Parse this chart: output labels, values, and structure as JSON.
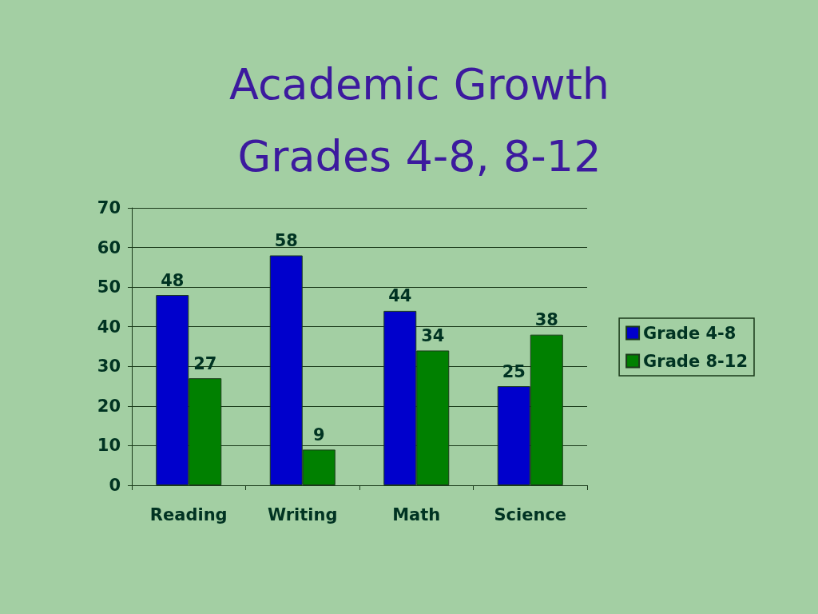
{
  "chart_data": {
    "type": "bar",
    "title": "Academic Growth\nGrades 4-8, 8-12",
    "categories": [
      "Reading",
      "Writing",
      "Math",
      "Science"
    ],
    "series": [
      {
        "name": "Grade 4-8",
        "color": "#0000cc",
        "values": [
          48,
          58,
          44,
          25
        ]
      },
      {
        "name": "Grade 8-12",
        "color": "#008000",
        "values": [
          27,
          9,
          34,
          38
        ]
      }
    ],
    "ylim": [
      0,
      70
    ],
    "yticks": [
      0,
      10,
      20,
      30,
      40,
      50,
      60,
      70
    ],
    "grid": "y",
    "legend": "right",
    "data_labels": true
  }
}
